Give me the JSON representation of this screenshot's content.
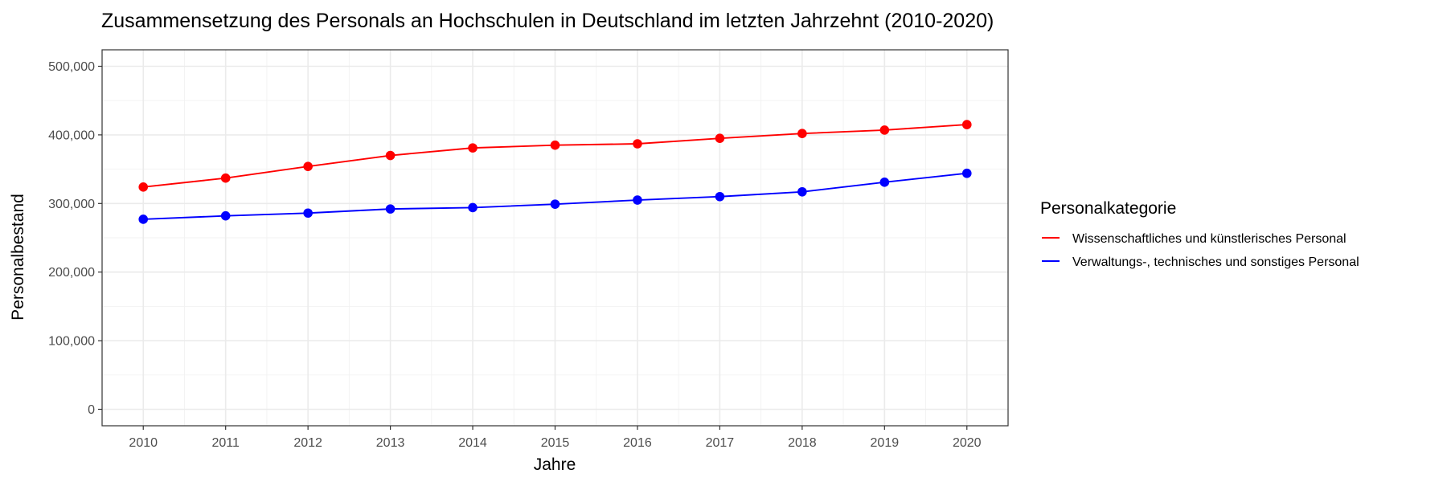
{
  "chart_data": {
    "type": "line",
    "title": "Zusammensetzung des Personals an Hochschulen in Deutschland im letzten Jahrzehnt (2010-2020)",
    "xlabel": "Jahre",
    "ylabel": "Personalbestand",
    "x": [
      2010,
      2011,
      2012,
      2013,
      2014,
      2015,
      2016,
      2017,
      2018,
      2019,
      2020
    ],
    "x_tick_labels": [
      "2010",
      "2011",
      "2012",
      "2013",
      "2014",
      "2015",
      "2016",
      "2017",
      "2018",
      "2019",
      "2020"
    ],
    "y_ticks": [
      0,
      100000,
      200000,
      300000,
      400000,
      500000
    ],
    "y_tick_labels": [
      "0",
      "100,000",
      "200,000",
      "300,000",
      "400,000",
      "500,000"
    ],
    "xlim": [
      2009.5,
      2020.5
    ],
    "ylim": [
      -24000,
      524000
    ],
    "grid": true,
    "legend": {
      "title": "Personalkategorie",
      "position": "right"
    },
    "series": [
      {
        "name": "Wissenschaftliches und künstlerisches Personal",
        "color": "#ff0000",
        "values": [
          324000,
          337000,
          354000,
          370000,
          381000,
          385000,
          387000,
          395000,
          402000,
          407000,
          415000
        ]
      },
      {
        "name": "Verwaltungs-, technisches und sonstiges Personal",
        "color": "#0000ff",
        "values": [
          277000,
          282000,
          286000,
          292000,
          294000,
          299000,
          305000,
          310000,
          317000,
          331000,
          344000
        ]
      }
    ]
  }
}
